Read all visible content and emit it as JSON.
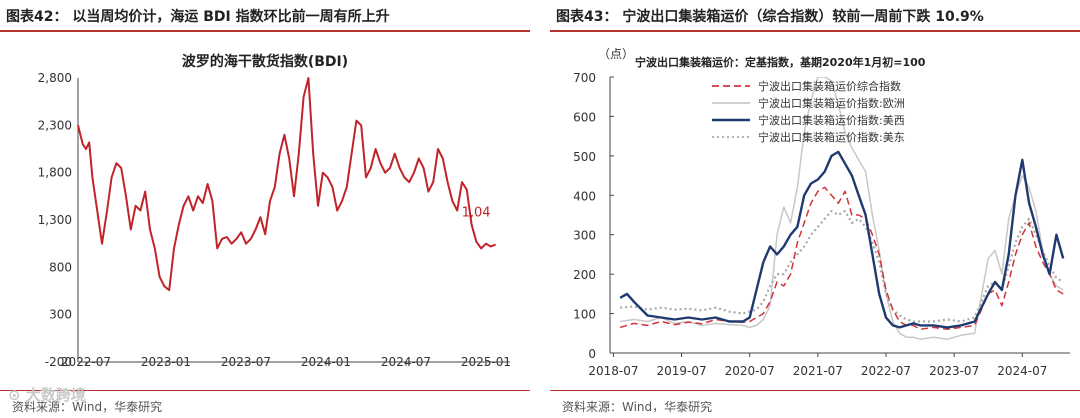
{
  "left_panel": {
    "header": "图表42：  以当周均价计，海运 BDI 指数环比前一周有所上升",
    "source": "资料来源：Wind，华泰研究"
  },
  "right_panel": {
    "header": "图表43：  宁波出口集装箱运价（综合指数）较前一周前下跌 10.9%",
    "source": "资料来源：Wind，华泰研究"
  },
  "watermark": "大数跨境",
  "chart_data": [
    {
      "type": "line",
      "title": "波罗的海干散货指数(BDI)",
      "xlabel": "",
      "ylabel": "",
      "ylim": [
        -200,
        2800
      ],
      "yticks": [
        "2,800",
        "2,300",
        "1,800",
        "1,300",
        "800",
        "300",
        "-200"
      ],
      "ytick_values": [
        2800,
        2300,
        1800,
        1300,
        800,
        300,
        -200
      ],
      "xticks": [
        "2022-07",
        "2023-01",
        "2023-07",
        "2024-01",
        "2024-07",
        "2025-01"
      ],
      "x_range": [
        2022.45,
        2025.15
      ],
      "xtick_positions": [
        2022.5,
        2023.0,
        2023.5,
        2024.0,
        2024.5,
        2025.0
      ],
      "color": "#c0242a",
      "end_label": "1,04",
      "series": [
        {
          "name": "BDI",
          "x": [
            2022.45,
            2022.48,
            2022.5,
            2022.52,
            2022.54,
            2022.57,
            2022.6,
            2022.63,
            2022.66,
            2022.69,
            2022.72,
            2022.75,
            2022.78,
            2022.81,
            2022.84,
            2022.87,
            2022.9,
            2022.93,
            2022.96,
            2022.99,
            2023.02,
            2023.05,
            2023.08,
            2023.11,
            2023.14,
            2023.17,
            2023.2,
            2023.23,
            2023.26,
            2023.29,
            2023.32,
            2023.35,
            2023.38,
            2023.41,
            2023.44,
            2023.47,
            2023.5,
            2023.53,
            2023.56,
            2023.59,
            2023.62,
            2023.65,
            2023.68,
            2023.71,
            2023.74,
            2023.77,
            2023.8,
            2023.83,
            2023.86,
            2023.89,
            2023.92,
            2023.95,
            2023.98,
            2024.01,
            2024.04,
            2024.07,
            2024.1,
            2024.13,
            2024.16,
            2024.19,
            2024.22,
            2024.25,
            2024.28,
            2024.31,
            2024.34,
            2024.37,
            2024.4,
            2024.43,
            2024.46,
            2024.49,
            2024.52,
            2024.55,
            2024.58,
            2024.61,
            2024.64,
            2024.67,
            2024.7,
            2024.73,
            2024.76,
            2024.79,
            2024.82,
            2024.85,
            2024.88,
            2024.91,
            2024.94,
            2024.97,
            2025.0,
            2025.03,
            2025.06
          ],
          "values": [
            2300,
            2100,
            2050,
            2120,
            1750,
            1400,
            1050,
            1380,
            1750,
            1900,
            1850,
            1550,
            1200,
            1450,
            1400,
            1600,
            1200,
            1000,
            700,
            600,
            560,
            1000,
            1250,
            1450,
            1550,
            1400,
            1550,
            1480,
            1680,
            1500,
            1000,
            1100,
            1120,
            1050,
            1100,
            1170,
            1050,
            1100,
            1200,
            1330,
            1150,
            1500,
            1650,
            2000,
            2200,
            1950,
            1550,
            2000,
            2600,
            2800,
            2000,
            1450,
            1800,
            1750,
            1650,
            1400,
            1500,
            1650,
            2000,
            2350,
            2300,
            1750,
            1850,
            2050,
            1900,
            1800,
            1850,
            2000,
            1850,
            1750,
            1700,
            1800,
            1950,
            1850,
            1600,
            1700,
            2050,
            1950,
            1700,
            1500,
            1400,
            1700,
            1620,
            1250,
            1070,
            1000,
            1050,
            1020,
            1040
          ]
        }
      ]
    },
    {
      "type": "line",
      "title": "宁波出口集装箱运价：定基指数，基期2020年1月初=100",
      "unit_label": "（点）",
      "ylim": [
        0,
        700
      ],
      "yticks": [
        "700",
        "600",
        "500",
        "400",
        "300",
        "200",
        "100",
        "0"
      ],
      "ytick_values": [
        700,
        600,
        500,
        400,
        300,
        200,
        100,
        0
      ],
      "xticks": [
        "2018-07",
        "2019-07",
        "2020-07",
        "2021-07",
        "2022-07",
        "2023-07",
        "2024-07"
      ],
      "x_range": [
        2018.45,
        2025.2
      ],
      "xtick_positions": [
        2018.5,
        2019.5,
        2020.5,
        2021.5,
        2022.5,
        2023.5,
        2024.5
      ],
      "legend_position": "top",
      "series": [
        {
          "name": "宁波出口集装箱运价综合指数",
          "color": "#d0343a",
          "style": "dashed",
          "x": [
            2018.6,
            2018.8,
            2019.0,
            2019.2,
            2019.4,
            2019.6,
            2019.8,
            2020.0,
            2020.2,
            2020.4,
            2020.5,
            2020.6,
            2020.7,
            2020.8,
            2020.9,
            2021.0,
            2021.1,
            2021.2,
            2021.3,
            2021.4,
            2021.5,
            2021.6,
            2021.7,
            2021.8,
            2021.9,
            2022.0,
            2022.1,
            2022.2,
            2022.3,
            2022.4,
            2022.5,
            2022.6,
            2022.7,
            2022.8,
            2022.9,
            2023.0,
            2023.2,
            2023.4,
            2023.6,
            2023.8,
            2024.0,
            2024.1,
            2024.2,
            2024.3,
            2024.4,
            2024.5,
            2024.6,
            2024.7,
            2024.8,
            2024.9,
            2025.0,
            2025.1
          ],
          "values": [
            65,
            75,
            70,
            80,
            72,
            78,
            74,
            85,
            80,
            78,
            80,
            90,
            100,
            130,
            180,
            170,
            200,
            280,
            330,
            380,
            410,
            420,
            400,
            380,
            410,
            350,
            350,
            340,
            300,
            250,
            160,
            110,
            80,
            70,
            70,
            60,
            65,
            60,
            65,
            70,
            150,
            160,
            120,
            180,
            250,
            300,
            330,
            270,
            230,
            200,
            160,
            150
          ]
        },
        {
          "name": "宁波出口集装箱运价指数:欧洲",
          "color": "#c8c8c8",
          "style": "solid",
          "x": [
            2018.6,
            2018.8,
            2019.0,
            2019.2,
            2019.4,
            2019.6,
            2019.8,
            2020.0,
            2020.2,
            2020.4,
            2020.5,
            2020.6,
            2020.7,
            2020.8,
            2020.9,
            2021.0,
            2021.1,
            2021.2,
            2021.3,
            2021.4,
            2021.5,
            2021.6,
            2021.7,
            2021.8,
            2021.9,
            2022.0,
            2022.1,
            2022.2,
            2022.3,
            2022.4,
            2022.5,
            2022.6,
            2022.7,
            2022.8,
            2022.9,
            2023.0,
            2023.2,
            2023.4,
            2023.6,
            2023.8,
            2024.0,
            2024.1,
            2024.2,
            2024.3,
            2024.4,
            2024.5,
            2024.6,
            2024.7,
            2024.8,
            2024.9,
            2025.0,
            2025.1
          ],
          "values": [
            80,
            85,
            80,
            90,
            75,
            80,
            70,
            75,
            72,
            70,
            65,
            70,
            85,
            120,
            300,
            370,
            330,
            420,
            560,
            640,
            700,
            700,
            690,
            630,
            560,
            520,
            490,
            460,
            350,
            260,
            150,
            80,
            50,
            40,
            40,
            35,
            40,
            35,
            45,
            50,
            240,
            260,
            200,
            340,
            400,
            450,
            420,
            360,
            260,
            200,
            170,
            160
          ]
        },
        {
          "name": "宁波出口集装箱运价指数:美西",
          "color": "#1f3a70",
          "style": "solid",
          "x": [
            2018.6,
            2018.7,
            2018.8,
            2019.0,
            2019.2,
            2019.4,
            2019.6,
            2019.8,
            2020.0,
            2020.2,
            2020.4,
            2020.5,
            2020.6,
            2020.7,
            2020.8,
            2020.9,
            2021.0,
            2021.1,
            2021.2,
            2021.3,
            2021.4,
            2021.5,
            2021.6,
            2021.7,
            2021.8,
            2021.9,
            2022.0,
            2022.1,
            2022.2,
            2022.3,
            2022.4,
            2022.5,
            2022.6,
            2022.7,
            2022.8,
            2022.9,
            2023.0,
            2023.2,
            2023.4,
            2023.6,
            2023.8,
            2024.0,
            2024.1,
            2024.2,
            2024.3,
            2024.4,
            2024.5,
            2024.6,
            2024.7,
            2024.8,
            2024.9,
            2025.0,
            2025.1
          ],
          "values": [
            140,
            150,
            130,
            95,
            90,
            85,
            90,
            85,
            90,
            80,
            80,
            90,
            160,
            230,
            270,
            250,
            270,
            300,
            320,
            400,
            430,
            440,
            460,
            500,
            510,
            480,
            450,
            400,
            350,
            250,
            150,
            90,
            70,
            65,
            70,
            75,
            70,
            70,
            65,
            70,
            80,
            150,
            180,
            160,
            250,
            400,
            490,
            380,
            320,
            250,
            200,
            300,
            240
          ]
        },
        {
          "name": "宁波出口集装箱运价指数:美东",
          "color": "#a8a8a8",
          "style": "dotted",
          "x": [
            2018.6,
            2018.8,
            2019.0,
            2019.2,
            2019.4,
            2019.6,
            2019.8,
            2020.0,
            2020.2,
            2020.4,
            2020.5,
            2020.6,
            2020.7,
            2020.8,
            2020.9,
            2021.0,
            2021.1,
            2021.2,
            2021.3,
            2021.4,
            2021.5,
            2021.6,
            2021.7,
            2021.8,
            2021.9,
            2022.0,
            2022.1,
            2022.2,
            2022.3,
            2022.4,
            2022.5,
            2022.6,
            2022.7,
            2022.8,
            2022.9,
            2023.0,
            2023.2,
            2023.4,
            2023.6,
            2023.8,
            2024.0,
            2024.1,
            2024.2,
            2024.3,
            2024.4,
            2024.5,
            2024.6,
            2024.7,
            2024.8,
            2024.9,
            2025.0,
            2025.1
          ],
          "values": [
            115,
            118,
            110,
            115,
            110,
            112,
            108,
            115,
            105,
            100,
            105,
            110,
            130,
            170,
            200,
            200,
            230,
            250,
            270,
            300,
            320,
            340,
            360,
            350,
            360,
            330,
            340,
            320,
            280,
            230,
            150,
            110,
            95,
            85,
            80,
            80,
            80,
            85,
            80,
            90,
            170,
            180,
            160,
            220,
            280,
            320,
            340,
            300,
            260,
            220,
            190,
            180
          ]
        }
      ]
    }
  ]
}
